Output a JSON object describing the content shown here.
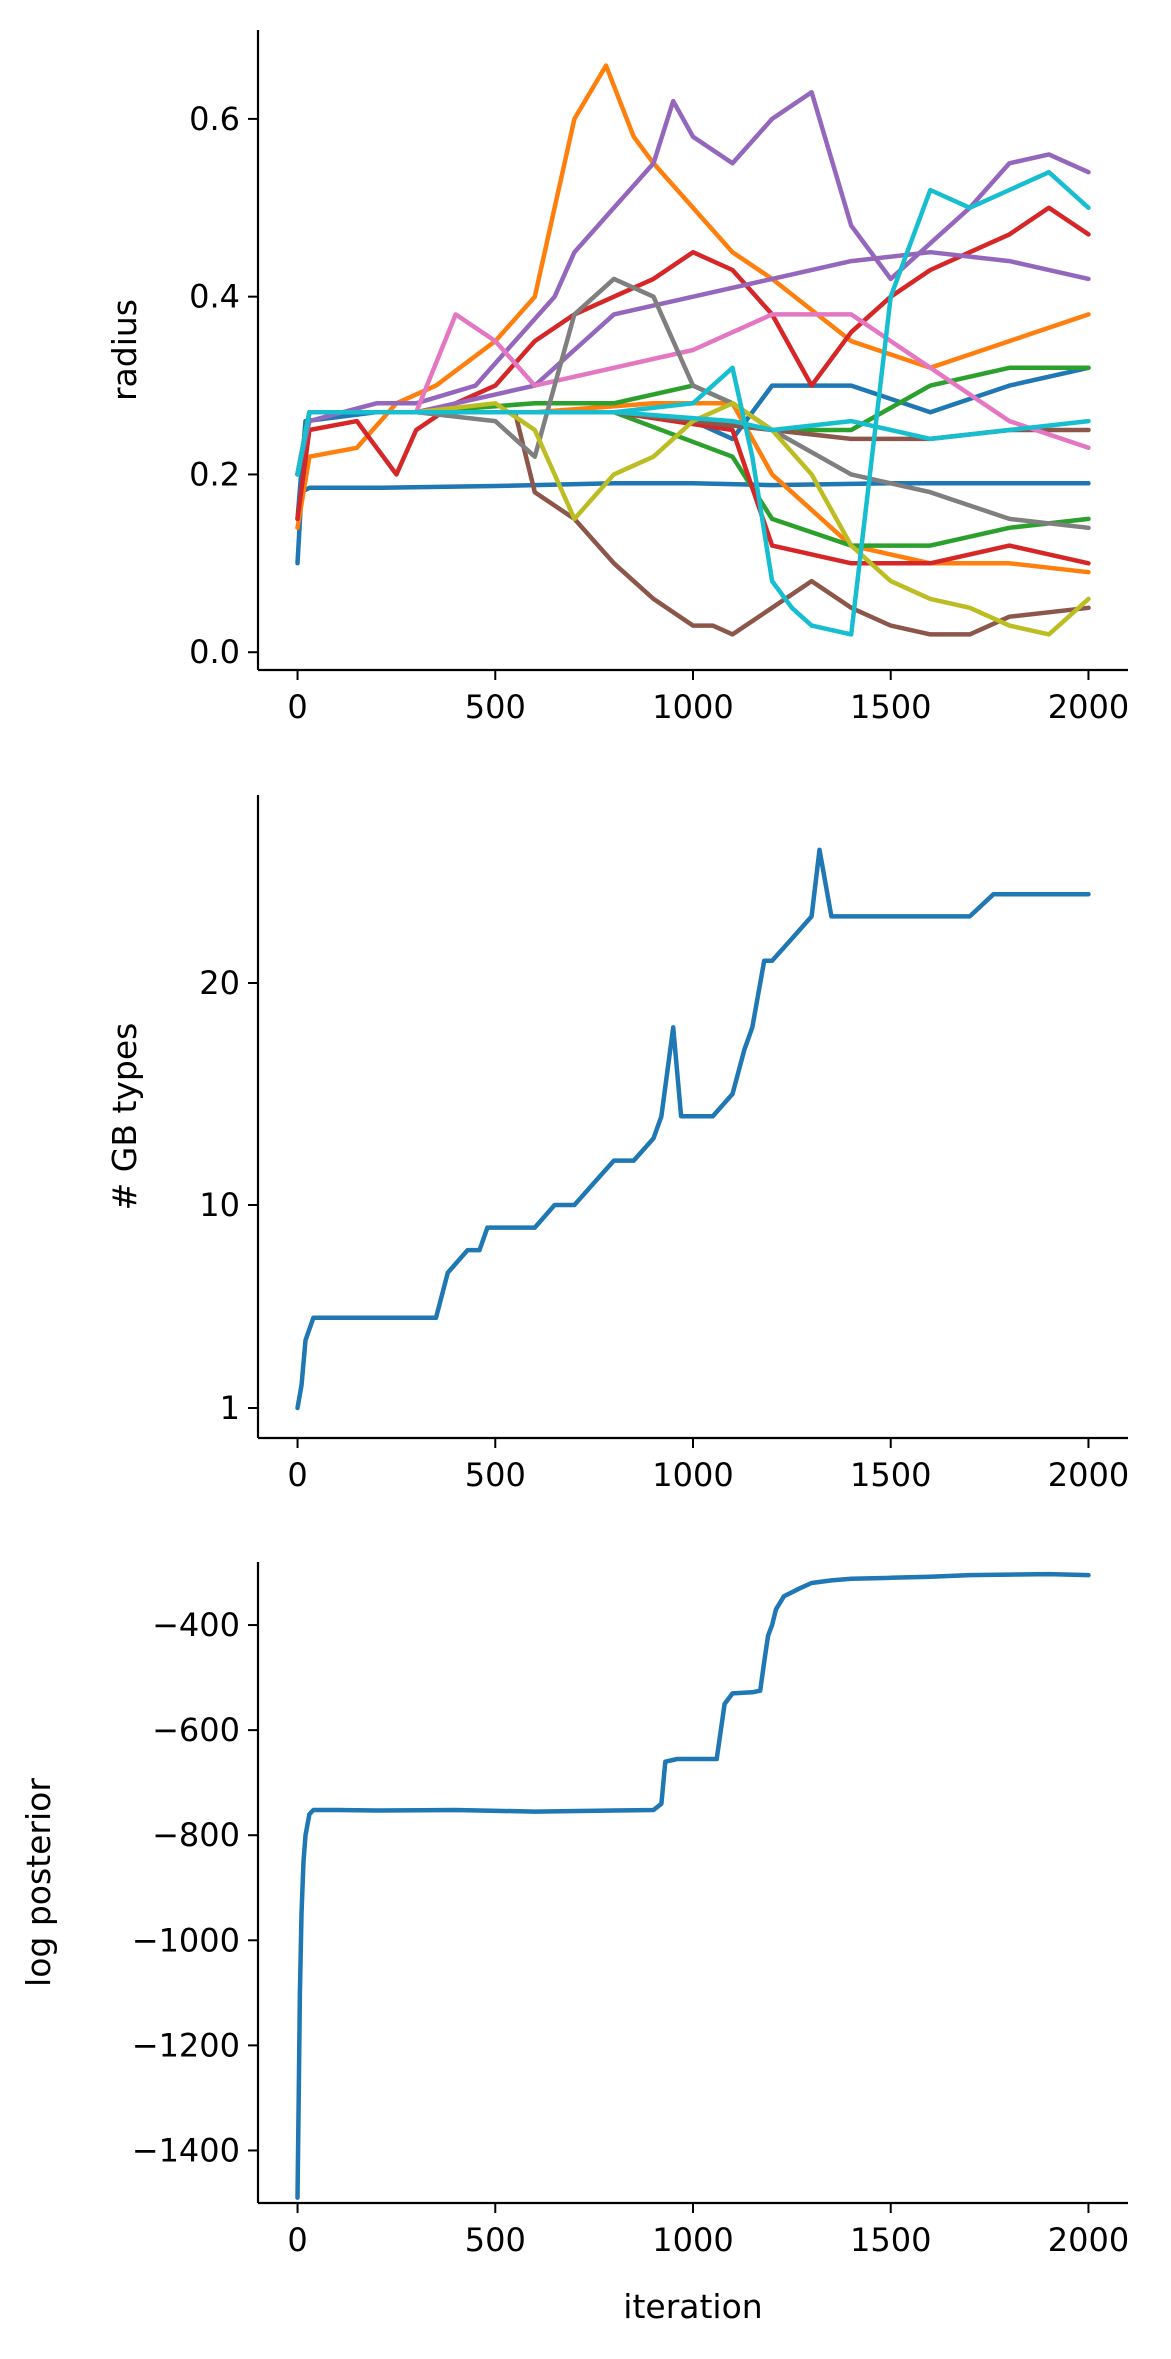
{
  "chart_data": [
    {
      "type": "line",
      "title": "",
      "xlabel": "",
      "ylabel": "radius",
      "xlim": [
        -100,
        2100
      ],
      "ylim": [
        -0.02,
        0.7
      ],
      "xticks": [
        0,
        500,
        1000,
        1500,
        2000
      ],
      "yticks": [
        0.0,
        0.2,
        0.4,
        0.6
      ],
      "ytick_labels": [
        "0.0",
        "0.2",
        "0.4",
        "0.6"
      ],
      "grid": false,
      "series": [
        {
          "color": "#1f77b4",
          "x": [
            0,
            10,
            30,
            200,
            500,
            800,
            1000,
            1200,
            1500,
            1800,
            2000
          ],
          "y": [
            0.1,
            0.18,
            0.185,
            0.185,
            0.187,
            0.19,
            0.19,
            0.188,
            0.19,
            0.19,
            0.19
          ]
        },
        {
          "color": "#1f77b4",
          "x": [
            0,
            20,
            200,
            400,
            600,
            800,
            1000,
            1100,
            1200,
            1400,
            1600,
            1800,
            2000
          ],
          "y": [
            0.15,
            0.26,
            0.27,
            0.27,
            0.27,
            0.27,
            0.26,
            0.24,
            0.3,
            0.3,
            0.27,
            0.3,
            0.32
          ]
        },
        {
          "color": "#ff7f0e",
          "x": [
            0,
            30,
            150,
            250,
            350,
            500,
            600,
            700,
            780,
            850,
            900,
            1000,
            1100,
            1200,
            1400,
            1600,
            1800,
            2000
          ],
          "y": [
            0.14,
            0.22,
            0.23,
            0.28,
            0.3,
            0.35,
            0.4,
            0.6,
            0.66,
            0.58,
            0.55,
            0.5,
            0.45,
            0.42,
            0.35,
            0.32,
            0.35,
            0.38
          ]
        },
        {
          "color": "#ff7f0e",
          "x": [
            0,
            30,
            300,
            600,
            900,
            1100,
            1200,
            1400,
            1600,
            1800,
            2000
          ],
          "y": [
            0.2,
            0.27,
            0.27,
            0.27,
            0.28,
            0.28,
            0.2,
            0.12,
            0.1,
            0.1,
            0.09
          ]
        },
        {
          "color": "#2ca02c",
          "x": [
            0,
            30,
            300,
            600,
            800,
            1000,
            1100,
            1200,
            1400,
            1600,
            1800,
            2000
          ],
          "y": [
            0.2,
            0.27,
            0.27,
            0.28,
            0.28,
            0.3,
            0.28,
            0.25,
            0.25,
            0.3,
            0.32,
            0.32
          ]
        },
        {
          "color": "#2ca02c",
          "x": [
            0,
            30,
            400,
            800,
            1100,
            1200,
            1400,
            1600,
            1800,
            2000
          ],
          "y": [
            0.2,
            0.27,
            0.27,
            0.27,
            0.22,
            0.15,
            0.12,
            0.12,
            0.14,
            0.15
          ]
        },
        {
          "color": "#d62728",
          "x": [
            0,
            30,
            150,
            250,
            300,
            400,
            500,
            600,
            700,
            800,
            900,
            1000,
            1100,
            1200,
            1300,
            1400,
            1500,
            1600,
            1700,
            1800,
            1900,
            2000
          ],
          "y": [
            0.15,
            0.25,
            0.26,
            0.2,
            0.25,
            0.28,
            0.3,
            0.35,
            0.38,
            0.4,
            0.42,
            0.45,
            0.43,
            0.38,
            0.3,
            0.36,
            0.4,
            0.43,
            0.45,
            0.47,
            0.5,
            0.47
          ]
        },
        {
          "color": "#d62728",
          "x": [
            0,
            30,
            400,
            800,
            1100,
            1200,
            1400,
            1600,
            1800,
            2000
          ],
          "y": [
            0.2,
            0.27,
            0.27,
            0.27,
            0.25,
            0.12,
            0.1,
            0.1,
            0.12,
            0.1
          ]
        },
        {
          "color": "#9467bd",
          "x": [
            0,
            30,
            200,
            300,
            450,
            550,
            650,
            700,
            800,
            900,
            950,
            1000,
            1100,
            1200,
            1300,
            1400,
            1500,
            1600,
            1700,
            1800,
            1900,
            2000
          ],
          "y": [
            0.2,
            0.26,
            0.28,
            0.28,
            0.3,
            0.35,
            0.4,
            0.45,
            0.5,
            0.55,
            0.62,
            0.58,
            0.55,
            0.6,
            0.63,
            0.48,
            0.42,
            0.46,
            0.5,
            0.55,
            0.56,
            0.54
          ]
        },
        {
          "color": "#9467bd",
          "x": [
            0,
            30,
            300,
            600,
            800,
            1000,
            1200,
            1400,
            1600,
            1800,
            2000
          ],
          "y": [
            0.2,
            0.27,
            0.27,
            0.3,
            0.38,
            0.4,
            0.42,
            0.44,
            0.45,
            0.44,
            0.42
          ]
        },
        {
          "color": "#8c564b",
          "x": [
            0,
            30,
            300,
            550,
            600,
            700,
            800,
            900,
            1000,
            1050,
            1100,
            1200,
            1300,
            1400,
            1500,
            1600,
            1700,
            1800,
            2000
          ],
          "y": [
            0.2,
            0.27,
            0.27,
            0.27,
            0.18,
            0.15,
            0.1,
            0.06,
            0.03,
            0.03,
            0.02,
            0.05,
            0.08,
            0.05,
            0.03,
            0.02,
            0.02,
            0.04,
            0.05
          ]
        },
        {
          "color": "#8c564b",
          "x": [
            0,
            30,
            400,
            800,
            1200,
            1400,
            1600,
            1800,
            2000
          ],
          "y": [
            0.2,
            0.27,
            0.27,
            0.27,
            0.25,
            0.24,
            0.24,
            0.25,
            0.25
          ]
        },
        {
          "color": "#e377c2",
          "x": [
            0,
            30,
            300,
            400,
            500,
            600,
            800,
            1000,
            1200,
            1400,
            1600,
            1800,
            2000
          ],
          "y": [
            0.2,
            0.27,
            0.27,
            0.38,
            0.35,
            0.3,
            0.32,
            0.34,
            0.38,
            0.38,
            0.32,
            0.26,
            0.23
          ]
        },
        {
          "color": "#7f7f7f",
          "x": [
            0,
            30,
            300,
            500,
            600,
            700,
            800,
            900,
            1000,
            1100,
            1200,
            1400,
            1600,
            1800,
            2000
          ],
          "y": [
            0.2,
            0.27,
            0.27,
            0.26,
            0.22,
            0.38,
            0.42,
            0.4,
            0.3,
            0.28,
            0.25,
            0.2,
            0.18,
            0.15,
            0.14
          ]
        },
        {
          "color": "#bcbd22",
          "x": [
            0,
            30,
            300,
            500,
            600,
            700,
            800,
            900,
            1000,
            1100,
            1200,
            1300,
            1400,
            1500,
            1600,
            1700,
            1800,
            1900,
            2000
          ],
          "y": [
            0.2,
            0.27,
            0.27,
            0.28,
            0.25,
            0.15,
            0.2,
            0.22,
            0.26,
            0.28,
            0.25,
            0.2,
            0.12,
            0.08,
            0.06,
            0.05,
            0.03,
            0.02,
            0.06
          ]
        },
        {
          "color": "#17becf",
          "x": [
            0,
            30,
            300,
            600,
            800,
            1000,
            1100,
            1150,
            1200,
            1250,
            1300,
            1400,
            1500,
            1600,
            1700,
            1800,
            1900,
            2000
          ],
          "y": [
            0.2,
            0.27,
            0.27,
            0.27,
            0.27,
            0.28,
            0.32,
            0.22,
            0.08,
            0.05,
            0.03,
            0.02,
            0.4,
            0.52,
            0.5,
            0.52,
            0.54,
            0.5
          ]
        },
        {
          "color": "#17becf",
          "x": [
            0,
            30,
            400,
            800,
            1100,
            1200,
            1400,
            1600,
            1800,
            2000
          ],
          "y": [
            0.2,
            0.27,
            0.27,
            0.27,
            0.26,
            0.25,
            0.26,
            0.24,
            0.25,
            0.26
          ]
        }
      ]
    },
    {
      "type": "line",
      "title": "",
      "xlabel": "",
      "ylabel": "# GB types",
      "xlim": [
        -100,
        2100
      ],
      "ylim": [
        0,
        29
      ],
      "xticks": [
        0,
        500,
        1000,
        1500,
        2000
      ],
      "yticks": [
        1,
        10,
        20
      ],
      "ytick_labels": [
        "1",
        "10",
        "20"
      ],
      "grid": false,
      "series": [
        {
          "color": "#1f77b4",
          "x": [
            0,
            10,
            20,
            40,
            100,
            160,
            220,
            280,
            350,
            380,
            430,
            460,
            480,
            520,
            560,
            600,
            650,
            700,
            750,
            800,
            850,
            900,
            920,
            950,
            970,
            1000,
            1050,
            1100,
            1130,
            1150,
            1180,
            1200,
            1250,
            1300,
            1320,
            1350,
            1400,
            1450,
            1500,
            1600,
            1700,
            1760,
            1800,
            1850,
            1900,
            1950,
            2000
          ],
          "y": [
            1,
            2,
            4,
            5,
            5,
            5,
            5,
            5,
            5,
            7,
            8,
            8,
            9,
            9,
            9,
            9,
            10,
            10,
            11,
            12,
            12,
            13,
            14,
            18,
            14,
            14,
            14,
            15,
            17,
            18,
            21,
            21,
            22,
            23,
            26,
            23,
            23,
            23,
            23,
            23,
            23,
            24,
            24,
            24,
            24,
            24,
            24
          ]
        }
      ]
    },
    {
      "type": "line",
      "title": "",
      "xlabel": "iteration",
      "ylabel": "log posterior",
      "xlim": [
        -100,
        2100
      ],
      "ylim": [
        -1500,
        -280
      ],
      "xticks": [
        0,
        500,
        1000,
        1500,
        2000
      ],
      "yticks": [
        -400,
        -600,
        -800,
        -1000,
        -1200,
        -1400
      ],
      "ytick_labels": [
        "−400",
        "−600",
        "−800",
        "−1000",
        "−1200",
        "−1400"
      ],
      "grid": false,
      "series": [
        {
          "color": "#1f77b4",
          "x": [
            0,
            3,
            6,
            10,
            15,
            20,
            30,
            40,
            60,
            100,
            200,
            400,
            600,
            800,
            900,
            920,
            930,
            960,
            1000,
            1060,
            1080,
            1090,
            1100,
            1150,
            1170,
            1180,
            1190,
            1200,
            1210,
            1230,
            1270,
            1300,
            1350,
            1400,
            1500,
            1600,
            1700,
            1800,
            1900,
            2000
          ],
          "y": [
            -1490,
            -1300,
            -1100,
            -950,
            -850,
            -800,
            -760,
            -752,
            -752,
            -752,
            -753,
            -752,
            -755,
            -753,
            -752,
            -740,
            -660,
            -655,
            -655,
            -655,
            -550,
            -540,
            -530,
            -528,
            -525,
            -470,
            -420,
            -400,
            -370,
            -345,
            -330,
            -320,
            -315,
            -312,
            -310,
            -308,
            -305,
            -304,
            -303,
            -305
          ]
        }
      ]
    }
  ]
}
